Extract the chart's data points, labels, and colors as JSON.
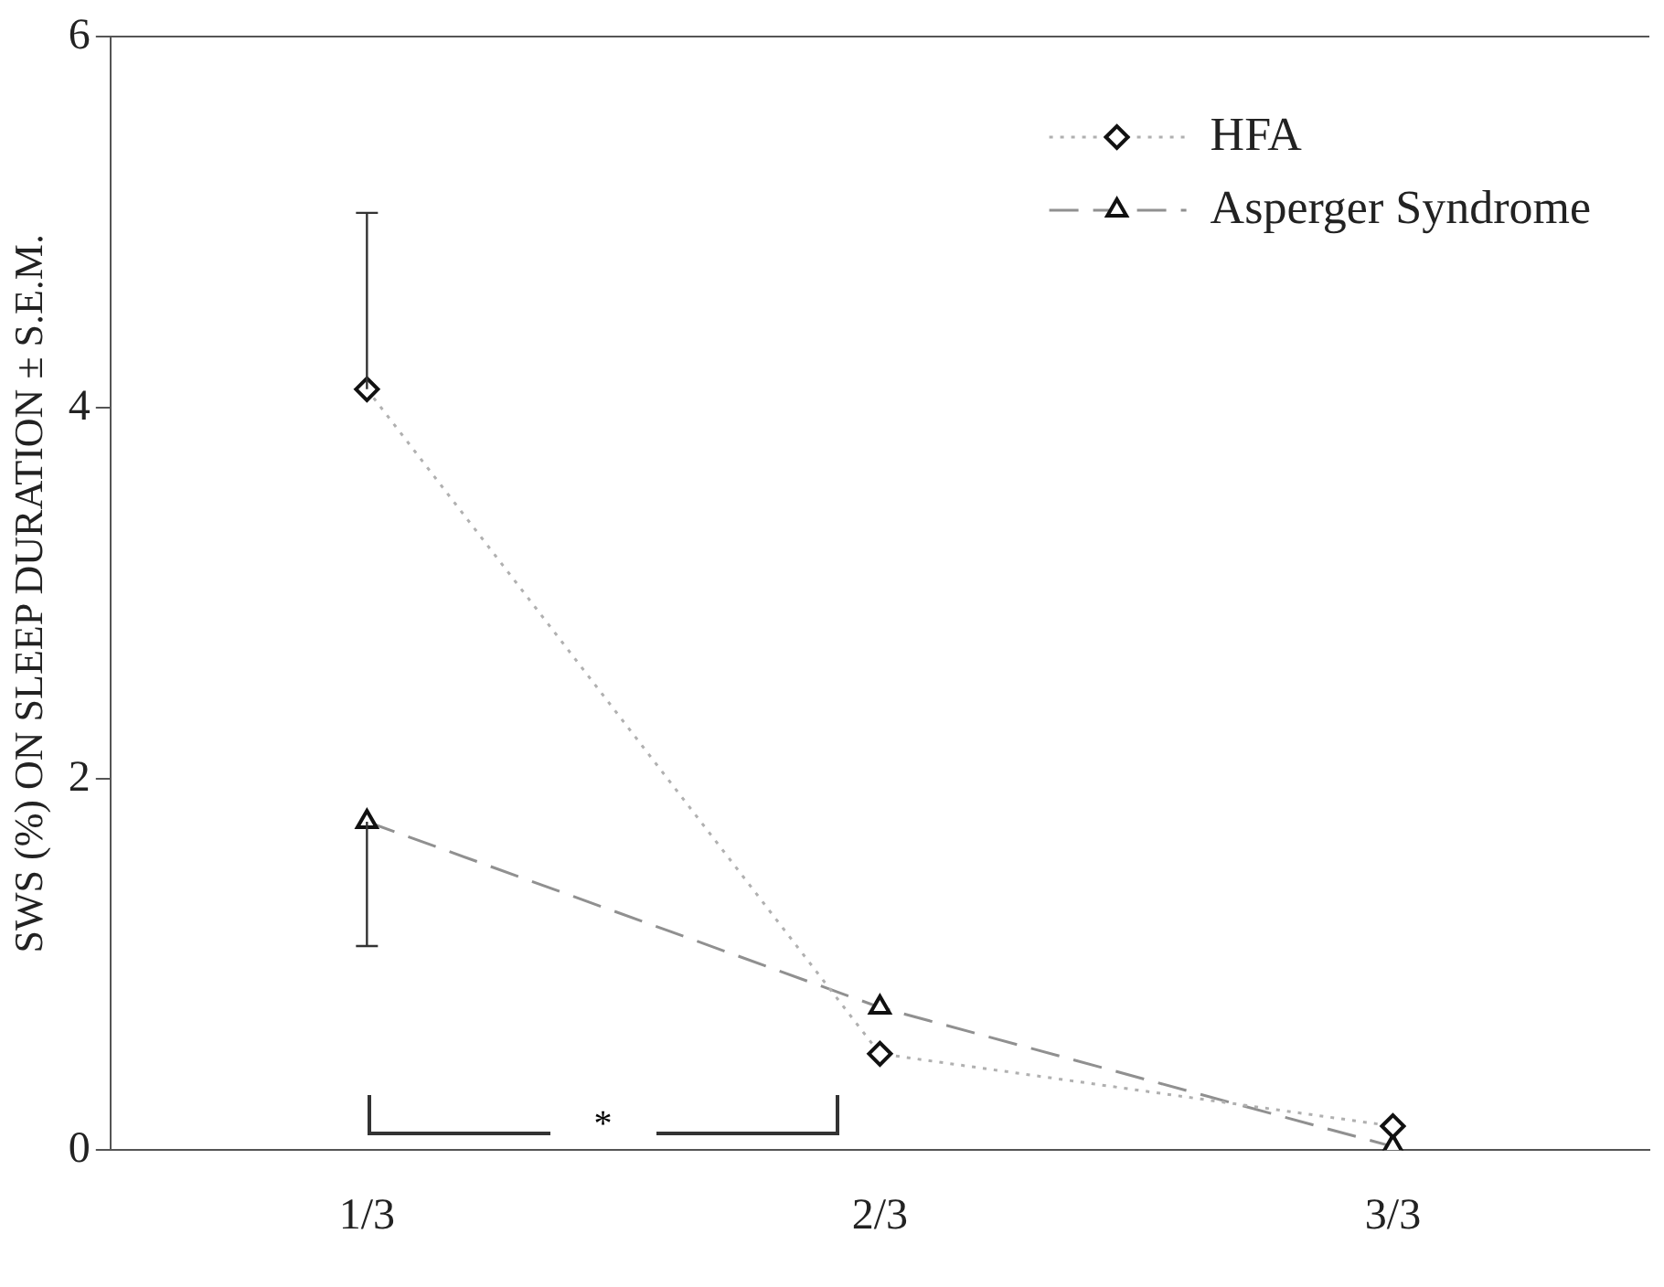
{
  "chart_data": {
    "type": "line",
    "ylabel": "SWS (%) ON SLEEP DURATION ± S.E.M.",
    "categories": [
      "1/3",
      "2/3",
      "3/3"
    ],
    "series": [
      {
        "name": "HFA",
        "color": "#b0b0b0",
        "values": [
          4.1,
          0.52,
          0.13
        ],
        "errors": [
          [
            4.1,
            5.05
          ],
          null,
          null
        ],
        "marker": "diamond",
        "line_style": "dotted"
      },
      {
        "name": "Asperger Syndrome",
        "color": "#909090",
        "values": [
          1.77,
          0.77,
          0.02
        ],
        "errors": [
          [
            1.1,
            1.77
          ],
          null,
          null
        ],
        "marker": "triangle",
        "line_style": "dashed"
      }
    ],
    "ylim": [
      0,
      6
    ],
    "yticks": [
      0,
      2,
      4,
      6
    ],
    "grid": false,
    "legend": "top right",
    "annotations": [
      "*"
    ]
  }
}
